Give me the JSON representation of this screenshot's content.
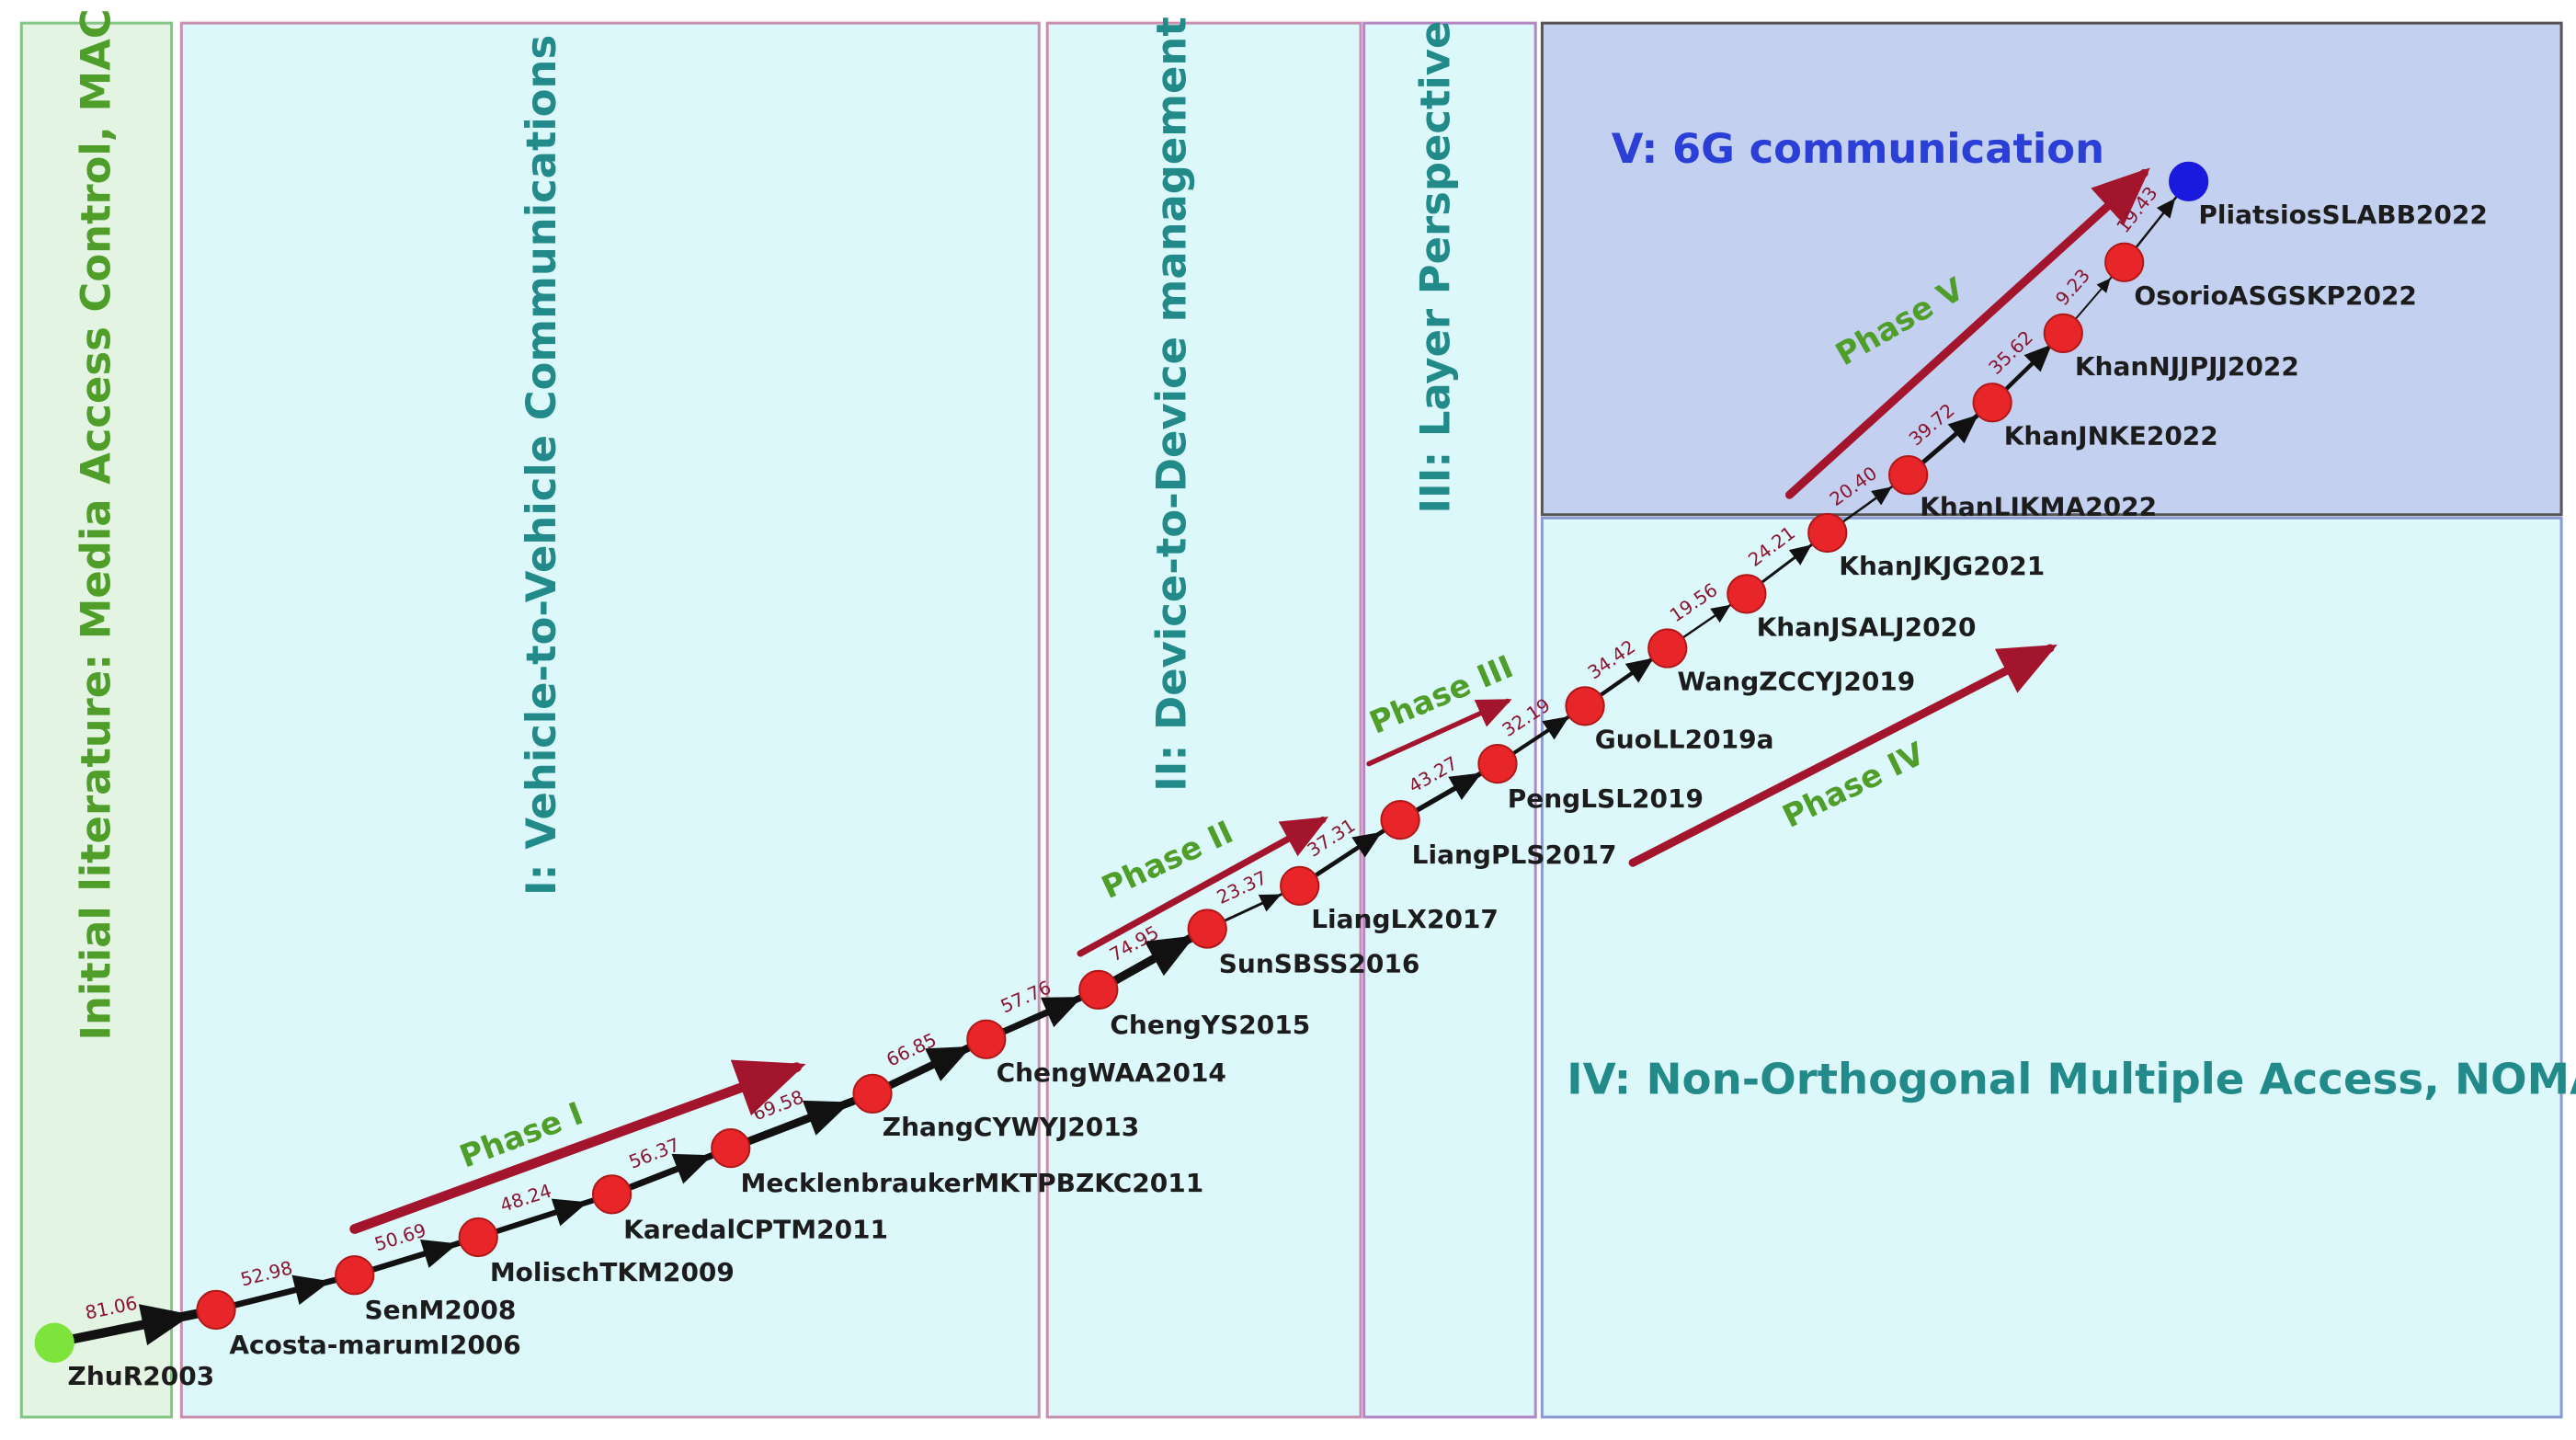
{
  "regions": [
    {
      "id": "r0",
      "label": "Initial literature: Media Access Control, MAC",
      "fill": "#e3f4e3",
      "stroke": "#84c484",
      "text_color": "#4f9e2a"
    },
    {
      "id": "r1",
      "label": "I:  Vehicle-to-Vehicle Communications",
      "fill": "#dcf8fb",
      "stroke": "#c890b0",
      "text_color": "#238a8a"
    },
    {
      "id": "r2",
      "label": "II:  Device-to-Device management",
      "fill": "#dcf8fb",
      "stroke": "#c890b0",
      "text_color": "#238a8a"
    },
    {
      "id": "r3",
      "label": "III:  Layer Perspective",
      "fill": "#dcf8fb",
      "stroke": "#b486c4",
      "text_color": "#238a8a"
    },
    {
      "id": "r4",
      "label": "IV: Non-Orthogonal Multiple Access, NOMA",
      "fill": "#dcf8fb",
      "stroke": "#8a9ad4",
      "text_color": "#238a8a"
    },
    {
      "id": "r5",
      "label": "V: 6G communication",
      "fill": "#c4d0ef",
      "stroke": "#555555",
      "text_color": "#2b3fd6"
    }
  ],
  "nodes": [
    {
      "id": "ZhuR2003",
      "label": "ZhuR2003",
      "color": "#7ee33a"
    },
    {
      "id": "Acosta-maruml2006",
      "label": "Acosta-marumI2006",
      "color": "#e8262a"
    },
    {
      "id": "SenM2008",
      "label": "SenM2008",
      "color": "#e8262a"
    },
    {
      "id": "MolischTKM2009",
      "label": "MolischTKM2009",
      "color": "#e8262a"
    },
    {
      "id": "KaredalCPTM2011",
      "label": "KaredalCPTM2011",
      "color": "#e8262a"
    },
    {
      "id": "MecklenbraukerMKTPBZKC2011",
      "label": "MecklenbraukerMKTPBZKC2011",
      "color": "#e8262a"
    },
    {
      "id": "ZhangCYWYJ2013",
      "label": "ZhangCYWYJ2013",
      "color": "#e8262a"
    },
    {
      "id": "ChengWAA2014",
      "label": "ChengWAA2014",
      "color": "#e8262a"
    },
    {
      "id": "ChengYS2015",
      "label": "ChengYS2015",
      "color": "#e8262a"
    },
    {
      "id": "SunSBSS2016",
      "label": "SunSBSS2016",
      "color": "#e8262a"
    },
    {
      "id": "LiangLX2017",
      "label": "LiangLX2017",
      "color": "#e8262a"
    },
    {
      "id": "LiangPLS2017",
      "label": "LiangPLS2017",
      "color": "#e8262a"
    },
    {
      "id": "PengLSL2019",
      "label": "PengLSL2019",
      "color": "#e8262a"
    },
    {
      "id": "GuoLL2019a",
      "label": "GuoLL2019a",
      "color": "#e8262a"
    },
    {
      "id": "WangZCCYJ2019",
      "label": "WangZCCYJ2019",
      "color": "#e8262a"
    },
    {
      "id": "KhanJSALJ2020",
      "label": "KhanJSALJ2020",
      "color": "#e8262a"
    },
    {
      "id": "KhanJKJG2021",
      "label": "KhanJKJG2021",
      "color": "#e8262a"
    },
    {
      "id": "KhanLIKMA2022",
      "label": "KhanLIKMA2022",
      "color": "#e8262a"
    },
    {
      "id": "KhanJNKE2022",
      "label": "KhanJNKE2022",
      "color": "#e8262a"
    },
    {
      "id": "KhanNJJPJJ2022",
      "label": "KhanNJJPJJ2022",
      "color": "#e8262a"
    },
    {
      "id": "OsorioASGSKP2022",
      "label": "OsorioASGSKP2022",
      "color": "#e8262a"
    },
    {
      "id": "PliatsiosSLABB2022",
      "label": "PliatsiosSLABB2022",
      "color": "#1a1adf"
    }
  ],
  "edges": [
    {
      "from": "ZhuR2003",
      "to": "Acosta-maruml2006",
      "weight": "81.06"
    },
    {
      "from": "Acosta-maruml2006",
      "to": "SenM2008",
      "weight": "52.98"
    },
    {
      "from": "SenM2008",
      "to": "MolischTKM2009",
      "weight": "50.69"
    },
    {
      "from": "MolischTKM2009",
      "to": "KaredalCPTM2011",
      "weight": "48.24"
    },
    {
      "from": "KaredalCPTM2011",
      "to": "MecklenbraukerMKTPBZKC2011",
      "weight": "56.37"
    },
    {
      "from": "MecklenbraukerMKTPBZKC2011",
      "to": "ZhangCYWYJ2013",
      "weight": "69.58"
    },
    {
      "from": "ZhangCYWYJ2013",
      "to": "ChengWAA2014",
      "weight": "66.85"
    },
    {
      "from": "ChengWAA2014",
      "to": "ChengYS2015",
      "weight": "57.76"
    },
    {
      "from": "ChengYS2015",
      "to": "SunSBSS2016",
      "weight": "74.95"
    },
    {
      "from": "SunSBSS2016",
      "to": "LiangLX2017",
      "weight": "23.37"
    },
    {
      "from": "LiangLX2017",
      "to": "LiangPLS2017",
      "weight": "37.31"
    },
    {
      "from": "LiangPLS2017",
      "to": "PengLSL2019",
      "weight": "43.27"
    },
    {
      "from": "PengLSL2019",
      "to": "GuoLL2019a",
      "weight": "32.19"
    },
    {
      "from": "GuoLL2019a",
      "to": "WangZCCYJ2019",
      "weight": "34.42"
    },
    {
      "from": "WangZCCYJ2019",
      "to": "KhanJSALJ2020",
      "weight": "19.56"
    },
    {
      "from": "KhanJSALJ2020",
      "to": "KhanJKJG2021",
      "weight": "24.21"
    },
    {
      "from": "KhanJKJG2021",
      "to": "KhanLIKMA2022",
      "weight": "20.40"
    },
    {
      "from": "KhanLIKMA2022",
      "to": "KhanJNKE2022",
      "weight": "39.72"
    },
    {
      "from": "KhanJNKE2022",
      "to": "KhanNJJPJJ2022",
      "weight": "35.62"
    },
    {
      "from": "KhanNJJPJJ2022",
      "to": "OsorioASGSKP2022",
      "weight": "9.23"
    },
    {
      "from": "OsorioASGSKP2022",
      "to": "PliatsiosSLABB2022",
      "weight": "19.43"
    }
  ],
  "phases": [
    {
      "id": "p1",
      "label": "Phase  I"
    },
    {
      "id": "p2",
      "label": "Phase  II"
    },
    {
      "id": "p3",
      "label": "Phase  III"
    },
    {
      "id": "p4",
      "label": "Phase  IV"
    },
    {
      "id": "p5",
      "label": "Phase  V"
    }
  ],
  "colors": {
    "edge": "#111111",
    "edge_label": "#8a1530",
    "phase_arrow": "#a3152c",
    "phase_label": "#4f9e2a",
    "node_stroke": "#b01818"
  }
}
